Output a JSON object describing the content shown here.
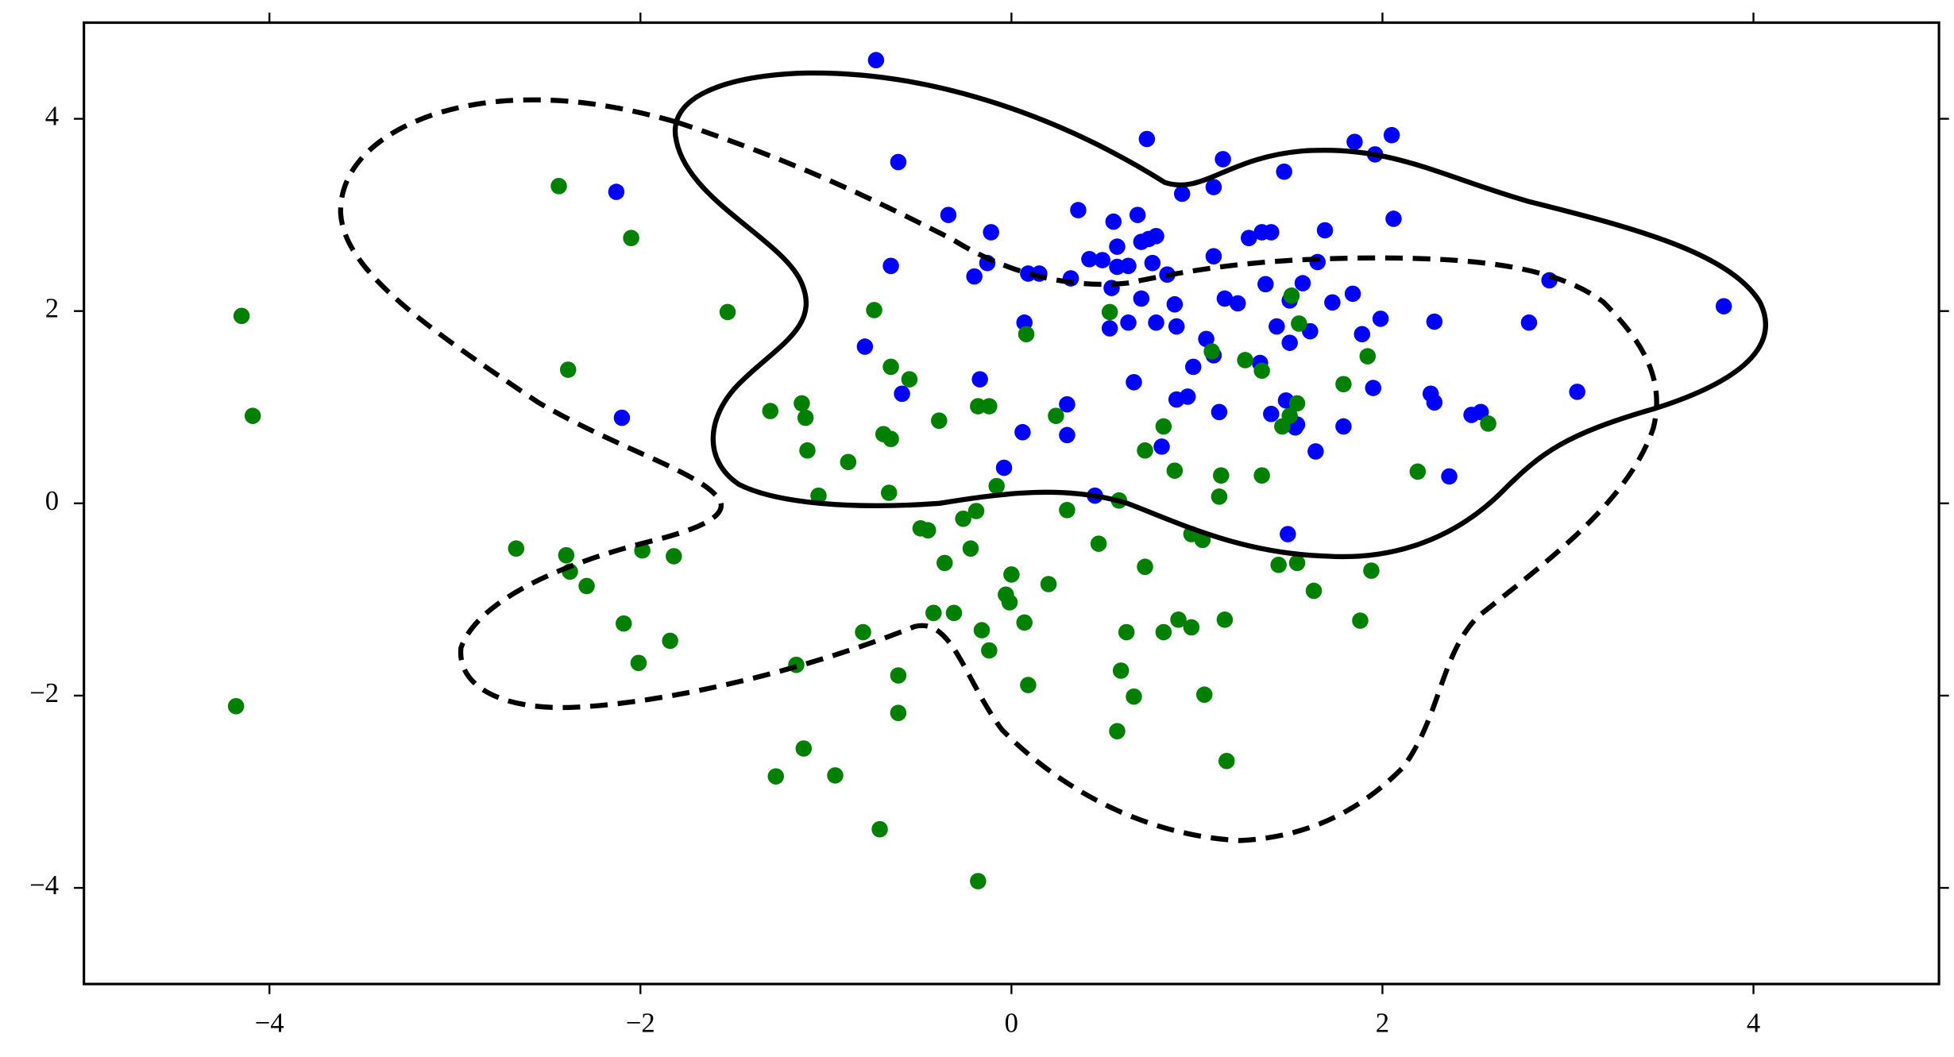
{
  "chart_data": {
    "type": "scatter",
    "xlim": [
      -5,
      5
    ],
    "ylim": [
      -5,
      5
    ],
    "xticks": [
      {
        "value": -4,
        "label": "−4"
      },
      {
        "value": -2,
        "label": "−2"
      },
      0,
      2,
      {
        "value": 4,
        "label": "4"
      }
    ],
    "yticks": [
      {
        "value": -4,
        "label": "−4"
      },
      {
        "value": -2,
        "label": "−2"
      },
      0,
      2,
      4
    ],
    "series": [
      {
        "color": "#0000ff",
        "x": [
          -0.73,
          -0.61,
          -2.13,
          0.73,
          1.14,
          1.85,
          2.05,
          1.96,
          1.47,
          1.09,
          0.36,
          0.55,
          0.68,
          0.92,
          -0.34,
          -0.11,
          -0.65,
          -0.2,
          -0.13,
          0.09,
          0.15,
          0.32,
          0.42,
          0.49,
          0.57,
          0.57,
          0.63,
          0.74,
          0.78,
          0.7,
          0.84,
          0.76,
          0.54,
          0.7,
          0.53,
          0.63,
          0.88,
          0.89,
          0.78,
          1.05,
          1.15,
          1.22,
          1.09,
          1.28,
          1.35,
          1.4,
          1.69,
          1.65,
          1.37,
          1.57,
          1.5,
          1.43,
          1.61,
          1.5,
          1.84,
          1.73,
          1.99,
          1.89,
          2.06,
          2.28,
          2.9,
          2.79,
          3.84,
          3.05,
          2.26,
          2.28,
          2.48,
          2.53,
          2.36,
          1.95,
          1.79,
          1.64,
          1.54,
          1.48,
          1.4,
          1.34,
          1.09,
          1.12,
          0.98,
          0.95,
          0.89,
          0.81,
          0.66,
          0.3,
          0.07,
          -0.17,
          -0.59,
          -0.79,
          0.06,
          0.3,
          -0.04,
          0.45,
          1.49,
          -2.1,
          1.53
        ],
        "y": [
          4.61,
          3.55,
          3.24,
          3.79,
          3.58,
          3.76,
          3.83,
          3.63,
          3.45,
          3.29,
          3.05,
          2.93,
          3.0,
          3.22,
          3.0,
          2.82,
          2.47,
          2.36,
          2.5,
          2.39,
          2.39,
          2.34,
          2.54,
          2.53,
          2.67,
          2.46,
          2.47,
          2.75,
          2.78,
          2.72,
          2.38,
          2.5,
          2.24,
          2.13,
          1.82,
          1.88,
          2.07,
          1.84,
          1.88,
          1.71,
          2.13,
          2.08,
          2.57,
          2.76,
          2.82,
          2.82,
          2.84,
          2.51,
          2.28,
          2.29,
          2.11,
          1.84,
          1.79,
          1.67,
          2.18,
          2.09,
          1.92,
          1.76,
          2.96,
          1.89,
          2.32,
          1.88,
          2.05,
          1.16,
          1.14,
          1.05,
          0.92,
          0.95,
          0.28,
          1.2,
          0.8,
          0.54,
          0.82,
          1.07,
          0.93,
          1.46,
          1.54,
          0.95,
          1.42,
          1.11,
          1.08,
          0.59,
          1.26,
          1.03,
          1.88,
          1.29,
          1.14,
          1.63,
          0.74,
          0.71,
          0.37,
          0.08,
          -0.32,
          0.89,
          0.79
        ]
      },
      {
        "color": "#008000",
        "x": [
          -2.44,
          -2.05,
          -4.15,
          -4.09,
          -2.39,
          -1.53,
          -0.74,
          0.53,
          0.08,
          -0.65,
          -0.55,
          -1.3,
          -1.13,
          -1.11,
          -1.1,
          -0.88,
          -1.04,
          -0.69,
          -0.65,
          -0.39,
          -0.18,
          -0.12,
          0.24,
          -0.66,
          -0.08,
          0.3,
          0.58,
          0.82,
          0.72,
          0.88,
          1.13,
          1.12,
          1.35,
          1.35,
          1.08,
          1.26,
          1.51,
          1.55,
          1.54,
          1.5,
          1.46,
          1.79,
          1.92,
          2.57,
          2.19,
          1.94,
          1.88,
          1.63,
          1.54,
          1.44,
          1.03,
          0.97,
          0.72,
          0.47,
          0.2,
          0.0,
          -0.01,
          -0.03,
          0.07,
          -0.16,
          -0.12,
          -0.31,
          -0.42,
          -0.49,
          -0.45,
          -0.36,
          -0.26,
          -0.19,
          -0.22,
          -0.8,
          -0.61,
          -0.61,
          -1.16,
          -1.27,
          -1.12,
          -0.95,
          -0.71,
          -0.18,
          0.09,
          0.57,
          0.59,
          0.62,
          0.66,
          0.82,
          0.9,
          0.97,
          1.04,
          1.15,
          1.16,
          -2.67,
          -2.4,
          -2.38,
          -2.29,
          -1.99,
          -1.82,
          -2.09,
          -2.01,
          -1.84,
          -4.18
        ],
        "y": [
          3.3,
          2.76,
          1.95,
          0.91,
          1.39,
          1.99,
          2.01,
          1.99,
          1.76,
          1.42,
          1.29,
          0.96,
          1.04,
          0.89,
          0.55,
          0.43,
          0.08,
          0.72,
          0.67,
          0.86,
          1.01,
          1.01,
          0.91,
          0.11,
          0.18,
          -0.07,
          0.03,
          0.8,
          0.55,
          0.34,
          0.29,
          0.07,
          0.29,
          1.38,
          1.58,
          1.49,
          2.16,
          1.87,
          1.04,
          0.91,
          0.8,
          1.24,
          1.53,
          0.83,
          0.33,
          -0.7,
          -1.22,
          -0.91,
          -0.62,
          -0.64,
          -0.38,
          -0.32,
          -0.66,
          -0.42,
          -0.84,
          -0.74,
          -1.03,
          -0.95,
          -1.24,
          -1.32,
          -1.53,
          -1.14,
          -1.14,
          -0.26,
          -0.28,
          -0.62,
          -0.16,
          -0.08,
          -0.47,
          -1.34,
          -1.79,
          -2.18,
          -1.68,
          -2.84,
          -2.55,
          -2.83,
          -3.39,
          -3.93,
          -1.89,
          -2.37,
          -1.74,
          -1.34,
          -2.01,
          -1.34,
          -1.21,
          -1.29,
          -1.99,
          -1.21,
          -2.68,
          -0.47,
          -0.54,
          -0.71,
          -0.86,
          -0.49,
          -0.55,
          -1.25,
          -1.66,
          -1.43,
          -2.11
        ]
      }
    ]
  }
}
